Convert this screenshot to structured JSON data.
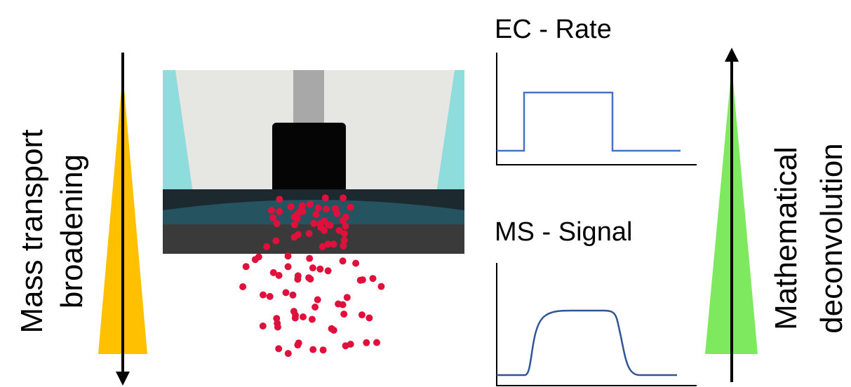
{
  "left_label": {
    "lines": [
      "Mass transport",
      "broadening"
    ]
  },
  "plots": [
    {
      "title": "EC - Rate"
    },
    {
      "title": "MS - Signal"
    }
  ],
  "right_label": {
    "lines": [
      "Mathematical",
      "deconvolution"
    ]
  }
}
